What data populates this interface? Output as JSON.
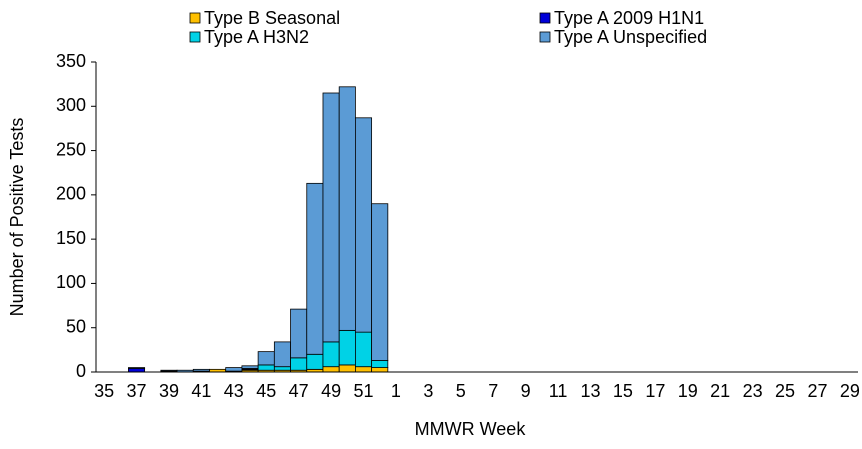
{
  "chart_data": {
    "type": "stacked-bar",
    "y_label": "Number of Positive Tests",
    "x_label": "MMWR Week",
    "categories": [
      "35",
      null,
      "37",
      null,
      "39",
      null,
      "41",
      null,
      "43",
      null,
      "45",
      null,
      "47",
      null,
      "49",
      null,
      "51",
      null,
      "1",
      null,
      "3",
      null,
      "5",
      null,
      "7",
      null,
      "9",
      null,
      "11",
      null,
      "13",
      null,
      "15",
      null,
      "17",
      null,
      "19",
      null,
      "21",
      null,
      "23",
      null,
      "25",
      null,
      "27",
      null,
      "29"
    ],
    "series": [
      {
        "name": "Type B Seasonal",
        "color": "#ffc000",
        "values": [
          0,
          0,
          0,
          0,
          1,
          0,
          1,
          3,
          1,
          2,
          2,
          2,
          2,
          3,
          6,
          8,
          6,
          5,
          0,
          0,
          0,
          0,
          0,
          0,
          0,
          0,
          0,
          0,
          0,
          0,
          0,
          0,
          0,
          0,
          0,
          0,
          0,
          0,
          0,
          0,
          0,
          0,
          0,
          0,
          0,
          0,
          0
        ]
      },
      {
        "name": "Type A 2009 H1N1",
        "color": "#0000d8",
        "values": [
          0,
          0,
          4,
          0,
          0,
          0,
          0,
          0,
          0,
          1,
          0,
          0,
          0,
          0,
          0,
          0,
          0,
          0,
          0,
          0,
          0,
          0,
          0,
          0,
          0,
          0,
          0,
          0,
          0,
          0,
          0,
          0,
          0,
          0,
          0,
          0,
          0,
          0,
          0,
          0,
          0,
          0,
          0,
          0,
          0,
          0,
          0
        ]
      },
      {
        "name": "Type A H3N2",
        "color": "#00d2e6",
        "values": [
          0,
          0,
          0,
          0,
          0,
          0,
          0,
          0,
          0,
          1,
          6,
          4,
          14,
          17,
          28,
          39,
          39,
          8,
          0,
          0,
          0,
          0,
          0,
          0,
          0,
          0,
          0,
          0,
          0,
          0,
          0,
          0,
          0,
          0,
          0,
          0,
          0,
          0,
          0,
          0,
          0,
          0,
          0,
          0,
          0,
          0,
          0
        ]
      },
      {
        "name": "Type A Unspecified",
        "color": "#5b9bd5",
        "values": [
          0,
          0,
          1,
          0,
          1,
          2,
          2,
          0,
          4,
          3,
          15,
          28,
          55,
          193,
          281,
          275,
          242,
          177,
          0,
          0,
          0,
          0,
          0,
          0,
          0,
          0,
          0,
          0,
          0,
          0,
          0,
          0,
          0,
          0,
          0,
          0,
          0,
          0,
          0,
          0,
          0,
          0,
          0,
          0,
          0,
          0,
          0
        ]
      }
    ],
    "ylim": [
      0,
      350
    ],
    "yticks": [
      0,
      50,
      100,
      150,
      200,
      250,
      300,
      350
    ]
  }
}
